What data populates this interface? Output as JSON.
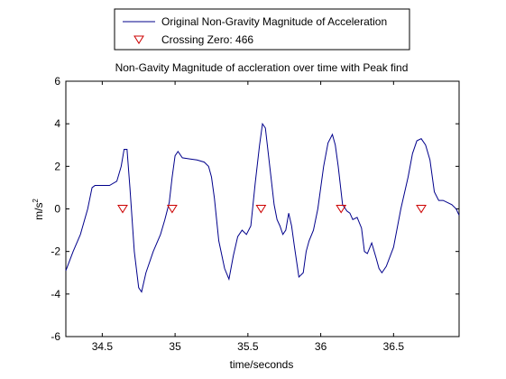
{
  "chart_data": {
    "type": "line",
    "title": "Non-Gavity Magnitude of accleration over time with Peak find",
    "xlabel": "time/seconds",
    "ylabel_base": "m/s",
    "ylabel_exponent": "2",
    "xlim": [
      34.25,
      36.95
    ],
    "ylim": [
      -6,
      6
    ],
    "x_ticks": [
      34.5,
      35,
      35.5,
      36,
      36.5
    ],
    "x_tick_labels": [
      "34.5",
      "35",
      "35.5",
      "36",
      "36.5"
    ],
    "y_ticks": [
      -6,
      -4,
      -2,
      0,
      2,
      4,
      6
    ],
    "y_tick_labels": [
      "-6",
      "-4",
      "-2",
      "0",
      "2",
      "4",
      "6"
    ],
    "grid": false,
    "legend_position": "above plot, center",
    "series": [
      {
        "name": "Original Non-Gravity Magnitude of Acceleration",
        "kind": "line",
        "color": "#00008b",
        "x": [
          34.25,
          34.3,
          34.35,
          34.4,
          34.43,
          34.45,
          34.5,
          34.55,
          34.6,
          34.63,
          34.65,
          34.67,
          34.69,
          34.72,
          34.75,
          34.77,
          34.8,
          34.85,
          34.9,
          34.93,
          34.96,
          34.98,
          35.0,
          35.02,
          35.05,
          35.1,
          35.15,
          35.2,
          35.23,
          35.25,
          35.27,
          35.3,
          35.34,
          35.37,
          35.4,
          35.43,
          35.46,
          35.49,
          35.52,
          35.55,
          35.58,
          35.6,
          35.62,
          35.65,
          35.68,
          35.7,
          35.72,
          35.74,
          35.76,
          35.78,
          35.8,
          35.82,
          35.85,
          35.88,
          35.9,
          35.92,
          35.95,
          35.98,
          36.0,
          36.02,
          36.05,
          36.08,
          36.1,
          36.12,
          36.15,
          36.18,
          36.2,
          36.22,
          36.25,
          36.28,
          36.3,
          36.32,
          36.35,
          36.38,
          36.4,
          36.42,
          36.45,
          36.5,
          36.55,
          36.6,
          36.63,
          36.66,
          36.69,
          36.72,
          36.75,
          36.78,
          36.81,
          36.84,
          36.87,
          36.9,
          36.93,
          36.95
        ],
        "y": [
          -2.9,
          -2.0,
          -1.2,
          0.0,
          1.0,
          1.1,
          1.1,
          1.1,
          1.3,
          2.0,
          2.8,
          2.8,
          1.0,
          -2.0,
          -3.7,
          -3.9,
          -3.0,
          -2.0,
          -1.2,
          -0.5,
          0.3,
          1.5,
          2.5,
          2.7,
          2.4,
          2.35,
          2.3,
          2.2,
          2.0,
          1.5,
          0.5,
          -1.5,
          -2.8,
          -3.3,
          -2.2,
          -1.3,
          -1.0,
          -1.2,
          -0.8,
          1.2,
          3.0,
          4.0,
          3.8,
          2.0,
          0.2,
          -0.5,
          -0.8,
          -1.2,
          -1.0,
          -0.2,
          -0.8,
          -1.8,
          -3.2,
          -3.0,
          -2.0,
          -1.5,
          -1.0,
          0.0,
          1.0,
          2.0,
          3.1,
          3.5,
          3.0,
          2.0,
          0.2,
          -0.1,
          -0.2,
          -0.5,
          -0.4,
          -0.9,
          -2.0,
          -2.1,
          -1.6,
          -2.3,
          -2.8,
          -3.0,
          -2.7,
          -1.8,
          0.0,
          1.5,
          2.6,
          3.2,
          3.3,
          3.0,
          2.3,
          0.8,
          0.4,
          0.4,
          0.3,
          0.2,
          0.0,
          -0.3
        ]
      },
      {
        "name": "Crossing Zero: 466",
        "kind": "marker",
        "marker": "triangle-down",
        "color": "#cc0000",
        "x": [
          34.64,
          34.98,
          35.59,
          36.14,
          36.69
        ],
        "y": [
          0,
          0,
          0,
          0,
          0
        ]
      }
    ]
  }
}
